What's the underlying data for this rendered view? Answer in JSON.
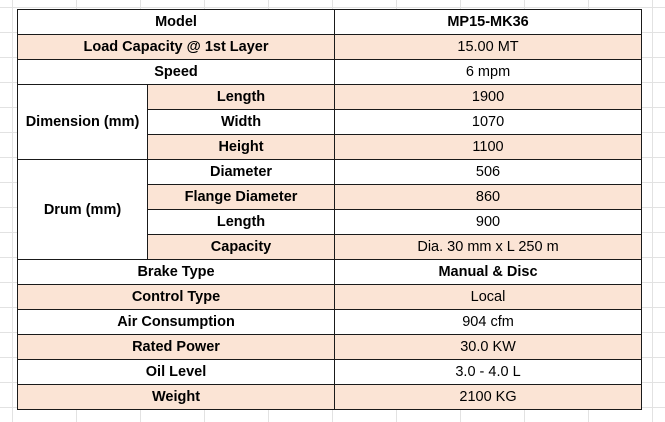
{
  "table": {
    "rows": [
      {
        "label": "Model",
        "value": "MP15-MK36",
        "value_bold": true
      },
      {
        "label": "Load Capacity @ 1st Layer",
        "value": "15.00 MT"
      },
      {
        "label": "Speed",
        "value": "6 mpm"
      },
      {
        "group": "Dimension (mm)",
        "items": [
          {
            "label": "Length",
            "value": "1900"
          },
          {
            "label": "Width",
            "value": "1070"
          },
          {
            "label": "Height",
            "value": "1100"
          }
        ]
      },
      {
        "group": "Drum (mm)",
        "items": [
          {
            "label": "Diameter",
            "value": "506"
          },
          {
            "label": "Flange Diameter",
            "value": "860"
          },
          {
            "label": "Length",
            "value": "900"
          },
          {
            "label": "Capacity",
            "value": "Dia. 30 mm x L 250 m"
          }
        ]
      },
      {
        "label": "Brake Type",
        "value": "Manual & Disc",
        "value_bold": true
      },
      {
        "label": "Control Type",
        "value": "Local"
      },
      {
        "label": "Air Consumption",
        "value": "904 cfm"
      },
      {
        "label": "Rated Power",
        "value": "30.0 KW"
      },
      {
        "label": "Oil Level",
        "value": "3.0 - 4.0 L"
      },
      {
        "label": "Weight",
        "value": "2100 KG"
      }
    ]
  }
}
